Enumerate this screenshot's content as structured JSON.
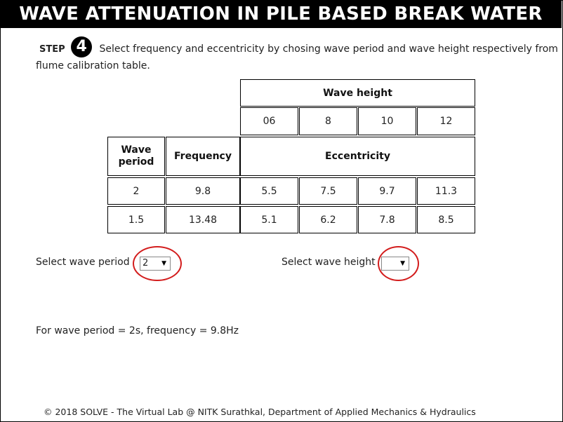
{
  "header": {
    "title": "WAVE ATTENUATION IN PILE BASED BREAK WATER"
  },
  "step": {
    "label": "STEP",
    "number": "4",
    "instruction": "Select frequency and eccentricity by chosing wave period and wave height respectively from flume calibration table."
  },
  "table": {
    "wave_height_header": "Wave height",
    "wave_heights": [
      "06",
      "8",
      "10",
      "12"
    ],
    "col_wave_period": "Wave period",
    "col_frequency": "Frequency",
    "col_eccentricity": "Eccentricity",
    "rows": [
      {
        "period": "2",
        "frequency": "9.8",
        "ecc": [
          "5.5",
          "7.5",
          "9.7",
          "11.3"
        ]
      },
      {
        "period": "1.5",
        "frequency": "13.48",
        "ecc": [
          "5.1",
          "6.2",
          "7.8",
          "8.5"
        ]
      }
    ]
  },
  "controls": {
    "wave_period_label": "Select wave period",
    "wave_period_value": "2",
    "wave_height_label": "Select wave height",
    "wave_height_value": ""
  },
  "result": {
    "text": "For wave period = 2s, frequency = 9.8Hz"
  },
  "footer": {
    "text": "© 2018 SOLVE - The Virtual Lab @ NITK Surathkal, Department of Applied Mechanics & Hydraulics"
  },
  "colors": {
    "banner_bg": "#000000",
    "highlight_ring": "#d31d1d"
  },
  "icons": {
    "dropdown": "triangle-down-icon"
  }
}
